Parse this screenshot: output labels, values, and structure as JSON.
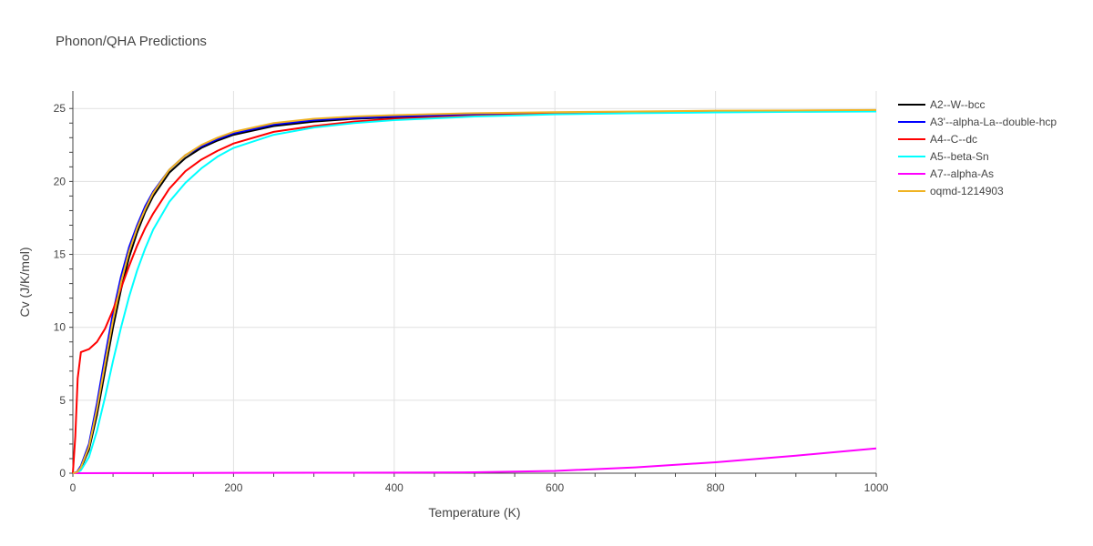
{
  "chart_data": {
    "type": "line",
    "title": "Phonon/QHA Predictions",
    "xlabel": "Temperature (K)",
    "ylabel": "Cv (J/K/mol)",
    "xlim": [
      0,
      1000
    ],
    "ylim": [
      0,
      26.2
    ],
    "x_ticks": [
      0,
      200,
      400,
      600,
      800,
      1000
    ],
    "y_ticks": [
      0,
      5,
      10,
      15,
      20,
      25
    ],
    "grid": true,
    "legend_position": "right",
    "series": [
      {
        "name": "A2--W--bcc",
        "color": "#000000",
        "points": [
          [
            0,
            0
          ],
          [
            5,
            0.05
          ],
          [
            10,
            0.35
          ],
          [
            20,
            1.6
          ],
          [
            30,
            4.0
          ],
          [
            40,
            7.0
          ],
          [
            50,
            10.0
          ],
          [
            60,
            12.6
          ],
          [
            70,
            14.8
          ],
          [
            80,
            16.5
          ],
          [
            90,
            17.9
          ],
          [
            100,
            19.0
          ],
          [
            120,
            20.6
          ],
          [
            140,
            21.6
          ],
          [
            160,
            22.3
          ],
          [
            180,
            22.8
          ],
          [
            200,
            23.2
          ],
          [
            250,
            23.8
          ],
          [
            300,
            24.1
          ],
          [
            350,
            24.3
          ],
          [
            400,
            24.4
          ],
          [
            500,
            24.6
          ],
          [
            600,
            24.7
          ],
          [
            700,
            24.75
          ],
          [
            800,
            24.8
          ],
          [
            900,
            24.82
          ],
          [
            1000,
            24.85
          ]
        ]
      },
      {
        "name": "A3'--alpha-La--double-hcp",
        "color": "#0000ff",
        "points": [
          [
            0,
            0
          ],
          [
            5,
            0.08
          ],
          [
            10,
            0.5
          ],
          [
            20,
            2.0
          ],
          [
            30,
            4.8
          ],
          [
            40,
            8.0
          ],
          [
            50,
            11.0
          ],
          [
            60,
            13.5
          ],
          [
            70,
            15.5
          ],
          [
            80,
            17.0
          ],
          [
            90,
            18.3
          ],
          [
            100,
            19.3
          ],
          [
            120,
            20.8
          ],
          [
            140,
            21.8
          ],
          [
            160,
            22.4
          ],
          [
            180,
            22.9
          ],
          [
            200,
            23.3
          ],
          [
            250,
            23.9
          ],
          [
            300,
            24.2
          ],
          [
            350,
            24.35
          ],
          [
            400,
            24.45
          ],
          [
            500,
            24.6
          ],
          [
            600,
            24.7
          ],
          [
            700,
            24.75
          ],
          [
            800,
            24.8
          ],
          [
            900,
            24.82
          ],
          [
            1000,
            24.85
          ]
        ]
      },
      {
        "name": "A4--C--dc",
        "color": "#ff0000",
        "points": [
          [
            0,
            0
          ],
          [
            3,
            2.5
          ],
          [
            6,
            6.5
          ],
          [
            10,
            8.3
          ],
          [
            20,
            8.5
          ],
          [
            30,
            9.0
          ],
          [
            40,
            9.9
          ],
          [
            50,
            11.2
          ],
          [
            60,
            12.7
          ],
          [
            70,
            14.2
          ],
          [
            80,
            15.6
          ],
          [
            90,
            16.8
          ],
          [
            100,
            17.8
          ],
          [
            120,
            19.5
          ],
          [
            140,
            20.7
          ],
          [
            160,
            21.5
          ],
          [
            180,
            22.1
          ],
          [
            200,
            22.6
          ],
          [
            250,
            23.4
          ],
          [
            300,
            23.8
          ],
          [
            350,
            24.1
          ],
          [
            400,
            24.3
          ],
          [
            500,
            24.5
          ],
          [
            600,
            24.65
          ],
          [
            700,
            24.75
          ],
          [
            800,
            24.8
          ],
          [
            900,
            24.83
          ],
          [
            1000,
            24.85
          ]
        ]
      },
      {
        "name": "A5--beta-Sn",
        "color": "#00ffff",
        "points": [
          [
            0,
            0
          ],
          [
            5,
            0.03
          ],
          [
            10,
            0.2
          ],
          [
            20,
            1.1
          ],
          [
            30,
            2.9
          ],
          [
            40,
            5.2
          ],
          [
            50,
            7.7
          ],
          [
            60,
            10.0
          ],
          [
            70,
            12.1
          ],
          [
            80,
            13.9
          ],
          [
            90,
            15.4
          ],
          [
            100,
            16.7
          ],
          [
            120,
            18.6
          ],
          [
            140,
            19.9
          ],
          [
            160,
            20.9
          ],
          [
            180,
            21.7
          ],
          [
            200,
            22.3
          ],
          [
            250,
            23.2
          ],
          [
            300,
            23.7
          ],
          [
            350,
            24.0
          ],
          [
            400,
            24.2
          ],
          [
            500,
            24.45
          ],
          [
            600,
            24.6
          ],
          [
            700,
            24.68
          ],
          [
            800,
            24.73
          ],
          [
            900,
            24.77
          ],
          [
            1000,
            24.8
          ]
        ]
      },
      {
        "name": "A7--alpha-As",
        "color": "#ff00ff",
        "points": [
          [
            0,
            0
          ],
          [
            100,
            0.01
          ],
          [
            200,
            0.02
          ],
          [
            300,
            0.03
          ],
          [
            400,
            0.04
          ],
          [
            500,
            0.06
          ],
          [
            600,
            0.16
          ],
          [
            700,
            0.4
          ],
          [
            800,
            0.75
          ],
          [
            900,
            1.2
          ],
          [
            1000,
            1.7
          ]
        ]
      },
      {
        "name": "oqmd-1214903",
        "color": "#f0b323",
        "points": [
          [
            0,
            0
          ],
          [
            5,
            0.06
          ],
          [
            10,
            0.4
          ],
          [
            20,
            1.8
          ],
          [
            30,
            4.4
          ],
          [
            40,
            7.5
          ],
          [
            50,
            10.5
          ],
          [
            60,
            13.1
          ],
          [
            70,
            15.2
          ],
          [
            80,
            16.8
          ],
          [
            90,
            18.1
          ],
          [
            100,
            19.2
          ],
          [
            120,
            20.8
          ],
          [
            140,
            21.8
          ],
          [
            160,
            22.5
          ],
          [
            180,
            23.0
          ],
          [
            200,
            23.4
          ],
          [
            250,
            24.0
          ],
          [
            300,
            24.3
          ],
          [
            350,
            24.45
          ],
          [
            400,
            24.55
          ],
          [
            500,
            24.68
          ],
          [
            600,
            24.75
          ],
          [
            700,
            24.8
          ],
          [
            800,
            24.85
          ],
          [
            900,
            24.87
          ],
          [
            1000,
            24.9
          ]
        ]
      }
    ]
  }
}
